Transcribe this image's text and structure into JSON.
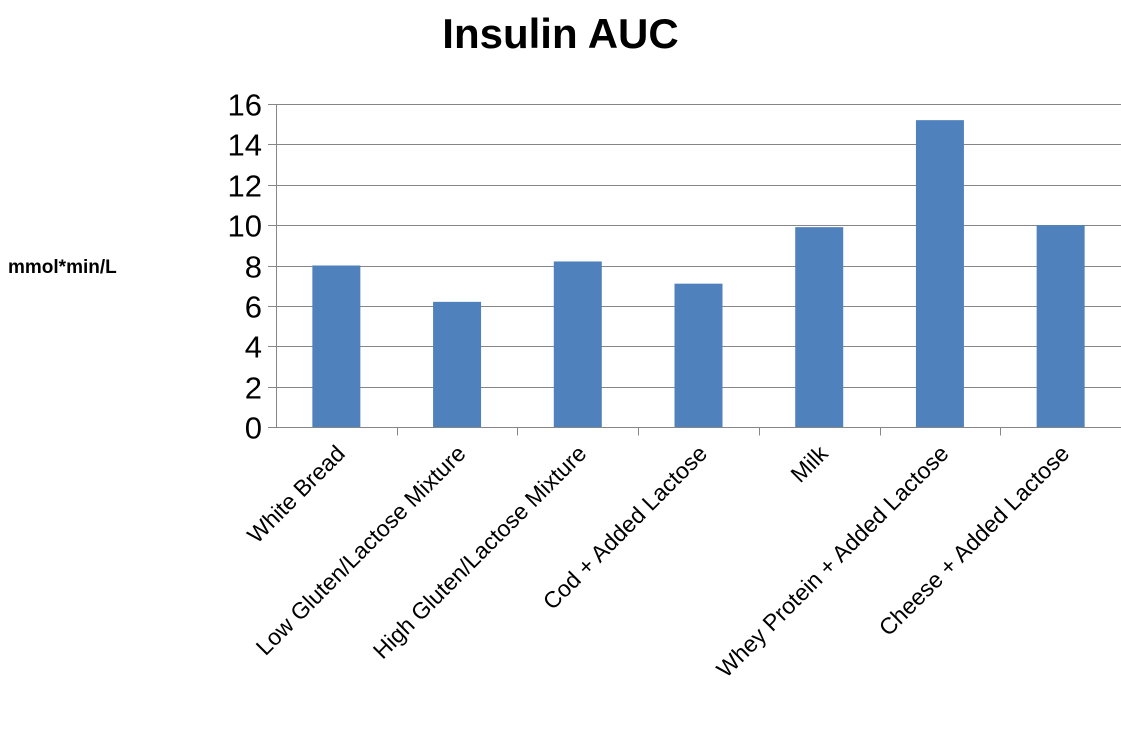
{
  "chart_data": {
    "type": "bar",
    "title": "Insulin AUC",
    "ylabel": "mmol*min/L",
    "xlabel": "",
    "categories": [
      "White Bread",
      "Low Gluten/Lactose Mixture",
      "High Gluten/Lactose Mixture",
      "Cod + Added Lactose",
      "Milk",
      "Whey Protein + Added Lactose",
      "Cheese + Added Lactose"
    ],
    "values": [
      8.0,
      6.2,
      8.2,
      7.1,
      9.9,
      15.2,
      10.0
    ],
    "ylim": [
      0,
      16
    ],
    "yticks": [
      0,
      2,
      4,
      6,
      8,
      10,
      12,
      14,
      16
    ],
    "grid": true,
    "legend": "none",
    "colors": {
      "bar": "#4F81BD",
      "grid": "#868686",
      "axis": "#868686"
    }
  }
}
